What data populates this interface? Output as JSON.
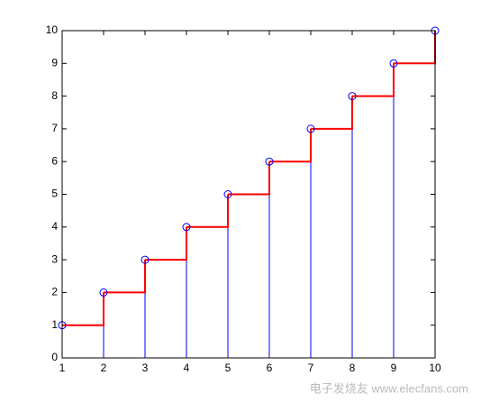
{
  "chart_data": {
    "type": "stem-stairs",
    "x": [
      1,
      2,
      3,
      4,
      5,
      6,
      7,
      8,
      9,
      10
    ],
    "series": [
      {
        "kind": "stem",
        "color": "#0000ff",
        "values": [
          1,
          2,
          3,
          4,
          5,
          6,
          7,
          8,
          9,
          10
        ]
      },
      {
        "kind": "stairs",
        "color": "#ff0000",
        "values": [
          1,
          2,
          3,
          4,
          5,
          6,
          7,
          8,
          9,
          10
        ]
      }
    ],
    "xlim": [
      1,
      10
    ],
    "xticks": [
      1,
      2,
      3,
      4,
      5,
      6,
      7,
      8,
      9,
      10
    ],
    "ylim": [
      0,
      10
    ],
    "yticks": [
      0,
      1,
      2,
      3,
      4,
      5,
      6,
      7,
      8,
      9,
      10
    ],
    "watermark": "电子发烧友 www.elecfans.com"
  }
}
